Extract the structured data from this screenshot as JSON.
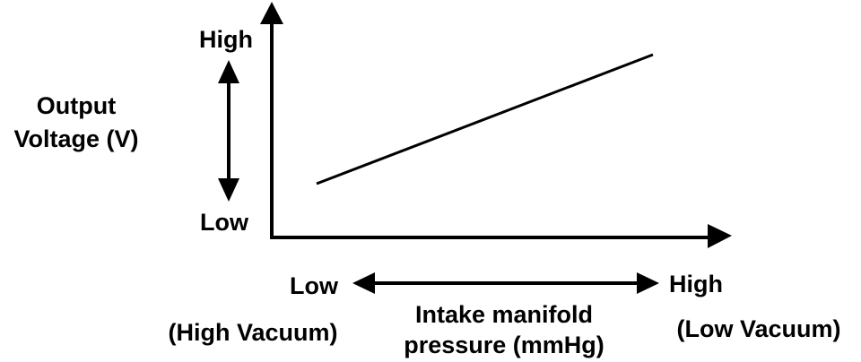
{
  "chart_data": {
    "type": "line",
    "title": "",
    "ylabel": [
      "Output",
      "Voltage (V)"
    ],
    "xlabel": [
      "Intake manifold",
      "pressure (mmHg)"
    ],
    "y_scale": {
      "high_label": "High",
      "low_label": "Low"
    },
    "x_scale": {
      "low_label": "Low",
      "high_label": "High",
      "low_note": "(High Vacuum)",
      "high_note": "(Low Vacuum)"
    },
    "x_range": [
      0,
      1
    ],
    "y_range": [
      0,
      1
    ],
    "series": [
      {
        "x": [
          0.1,
          0.85
        ],
        "y": [
          0.25,
          0.85
        ]
      }
    ],
    "grid": false,
    "legend": "none",
    "colors": {
      "ink": "#000000",
      "background": "#ffffff"
    }
  }
}
